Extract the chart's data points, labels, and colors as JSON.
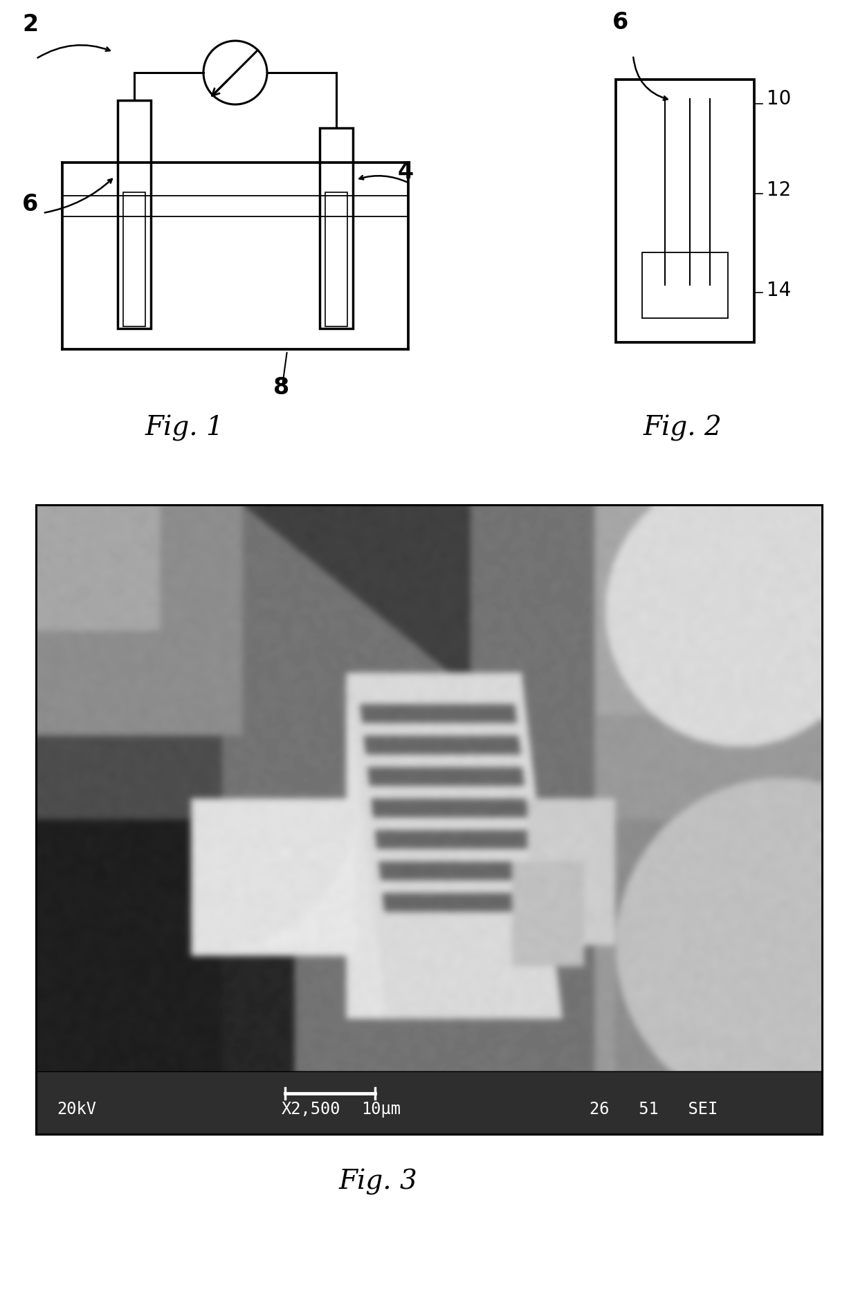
{
  "bg_color": "#ffffff",
  "fig_width": 12.4,
  "fig_height": 18.87,
  "line_color": "#000000",
  "line_width": 2.2,
  "fig1_label": "Fig. 1",
  "fig2_label": "Fig. 2",
  "fig3_label": "Fig. 3",
  "label_2": "2",
  "label_4": "4",
  "label_6": "6",
  "label_6b": "6",
  "label_8": "8",
  "label_10": "10",
  "label_12": "12",
  "label_14": "14",
  "sem_bottom_text_left": "20kV",
  "sem_bottom_text_mid1": "X2,500",
  "sem_bottom_text_mid2": "10μm",
  "sem_bottom_text_right": "26   51   SEI",
  "sem_bar_color": "#2a2a2a",
  "sem_frame_color": "#000000"
}
